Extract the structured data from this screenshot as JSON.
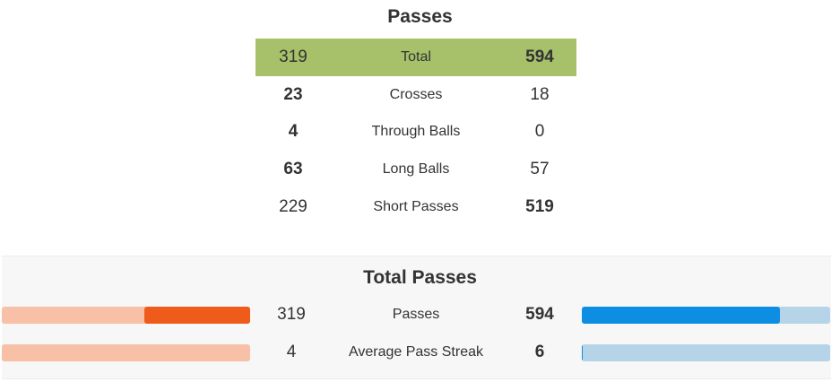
{
  "passes": {
    "title": "Passes",
    "rows": [
      {
        "label": "Total",
        "home": "319",
        "away": "594"
      },
      {
        "label": "Crosses",
        "home": "23",
        "away": "18"
      },
      {
        "label": "Through Balls",
        "home": "4",
        "away": "0"
      },
      {
        "label": "Long Balls",
        "home": "63",
        "away": "57"
      },
      {
        "label": "Short Passes",
        "home": "229",
        "away": "519"
      }
    ]
  },
  "total_passes": {
    "title": "Total Passes",
    "rows": [
      {
        "label": "Passes",
        "home": "319",
        "away": "594",
        "home_fill_fraction": 0.426,
        "away_fill_fraction": 0.797
      },
      {
        "label": "Average Pass Streak",
        "home": "4",
        "away": "6",
        "home_fill_fraction": 0.0,
        "away_fill_fraction": 0.004
      }
    ]
  },
  "colors": {
    "highlight_row": "#a6c16a",
    "home_bar_fill": "#ef5b1a",
    "home_bar_track": "#f8c0a6",
    "away_bar_fill": "#0d8ee3",
    "away_bar_track": "#b5d4e7"
  }
}
